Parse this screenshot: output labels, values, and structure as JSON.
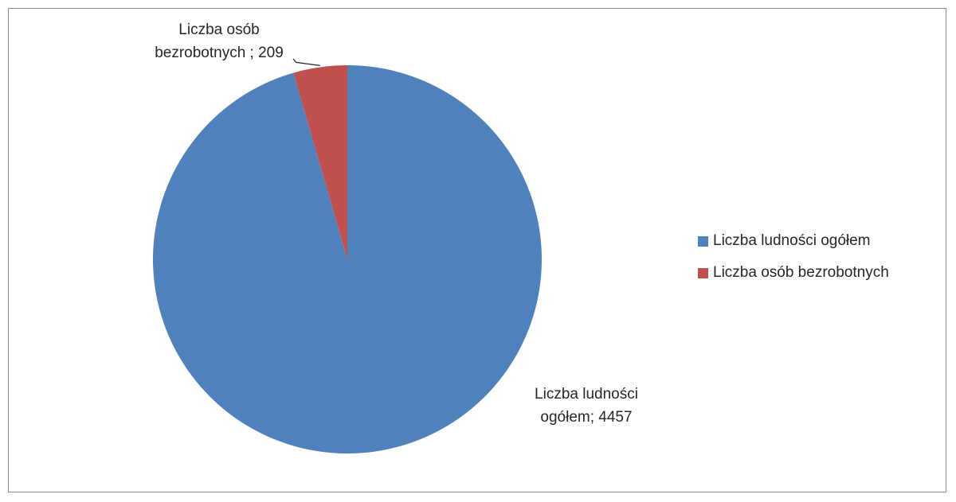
{
  "chart_data": {
    "type": "pie",
    "title": "",
    "categories": [
      "Liczba ludności ogółem",
      "Liczba osób bezrobotnych"
    ],
    "values": [
      4457,
      209
    ],
    "colors": [
      "#4f81bd",
      "#c0504d"
    ],
    "data_labels": [
      [
        "Liczba ludności",
        "ogółem; 4457"
      ],
      [
        "Liczba osób",
        "bezrobotnych ; 209"
      ]
    ],
    "legend": {
      "position": "right",
      "entries": [
        "Liczba ludności ogółem",
        "Liczba osób bezrobotnych"
      ]
    }
  }
}
